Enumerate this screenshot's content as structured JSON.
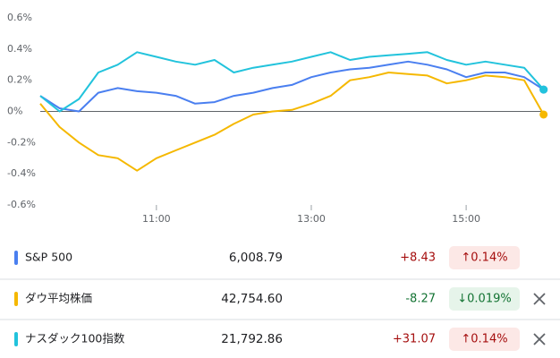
{
  "chart_data": {
    "type": "line",
    "x": [
      570,
      585,
      600,
      615,
      630,
      645,
      660,
      675,
      690,
      705,
      720,
      735,
      750,
      765,
      780,
      795,
      810,
      825,
      840,
      855,
      870,
      885,
      900,
      915,
      930,
      945,
      960
    ],
    "xlim": [
      570,
      963
    ],
    "xticks": [
      {
        "value": 660,
        "label": "11:00"
      },
      {
        "value": 780,
        "label": "13:00"
      },
      {
        "value": 900,
        "label": "15:00"
      }
    ],
    "ylim": [
      -0.6,
      0.6
    ],
    "yticks": [
      {
        "value": 0.6,
        "label": "0.6%"
      },
      {
        "value": 0.4,
        "label": "0.4%"
      },
      {
        "value": 0.2,
        "label": "0.2%"
      },
      {
        "value": 0,
        "label": "0%"
      },
      {
        "value": -0.2,
        "label": "-0.2%"
      },
      {
        "value": -0.4,
        "label": "-0.4%"
      },
      {
        "value": -0.6,
        "label": "-0.6%"
      }
    ],
    "series": [
      {
        "name": "S&P 500",
        "color": "#4a7ff0",
        "values": [
          0.1,
          0.02,
          0.0,
          0.12,
          0.15,
          0.13,
          0.12,
          0.1,
          0.05,
          0.06,
          0.1,
          0.12,
          0.15,
          0.17,
          0.22,
          0.25,
          0.27,
          0.28,
          0.3,
          0.32,
          0.3,
          0.27,
          0.22,
          0.25,
          0.25,
          0.22,
          0.14
        ]
      },
      {
        "name": "ダウ平均株価",
        "color": "#f5b800",
        "values": [
          0.05,
          -0.1,
          -0.2,
          -0.28,
          -0.3,
          -0.38,
          -0.3,
          -0.25,
          -0.2,
          -0.15,
          -0.08,
          -0.02,
          0.0,
          0.01,
          0.05,
          0.1,
          0.2,
          0.22,
          0.25,
          0.24,
          0.23,
          0.18,
          0.2,
          0.23,
          0.22,
          0.2,
          -0.02
        ]
      },
      {
        "name": "ナスダック100指数",
        "color": "#22c3dc",
        "values": [
          0.1,
          0.0,
          0.08,
          0.25,
          0.3,
          0.38,
          0.35,
          0.32,
          0.3,
          0.33,
          0.25,
          0.28,
          0.3,
          0.32,
          0.35,
          0.38,
          0.33,
          0.35,
          0.36,
          0.37,
          0.38,
          0.33,
          0.3,
          0.32,
          0.3,
          0.28,
          0.14
        ]
      }
    ]
  },
  "table": {
    "rows": [
      {
        "price": "6,008.79",
        "change": "+8.43",
        "percent": "↑0.14%"
      },
      {
        "price": "42,754.60",
        "change": "-8.27",
        "percent": "↓0.019%"
      },
      {
        "price": "21,792.86",
        "change": "+31.07",
        "percent": "↑0.14%"
      }
    ]
  }
}
